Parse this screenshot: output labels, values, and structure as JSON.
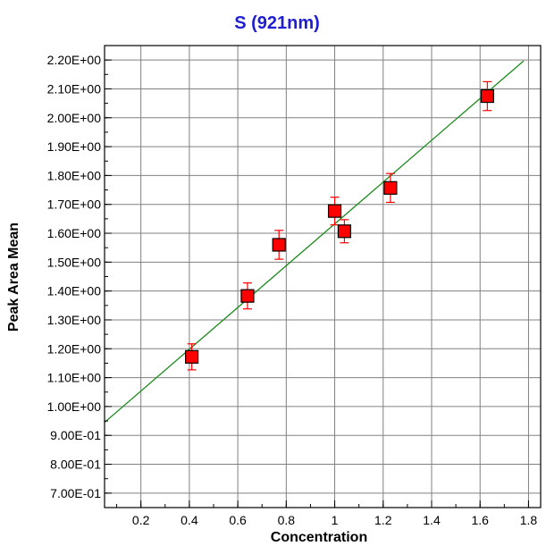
{
  "chart_data": {
    "type": "scatter",
    "title": "S (921nm)",
    "xlabel": "Concentration",
    "ylabel": "Peak Area Mean",
    "xlim": [
      0.05,
      1.85
    ],
    "ylim": [
      0.65,
      2.25
    ],
    "x_ticks": [
      0.2,
      0.4,
      0.6,
      0.8,
      1,
      1.2,
      1.4,
      1.6,
      1.8
    ],
    "x_tick_labels": [
      "0.2",
      "0.4",
      "0.6",
      "0.8",
      "1",
      "1.2",
      "1.4",
      "1.6",
      "1.8"
    ],
    "y_ticks": [
      0.7,
      0.8,
      0.9,
      1.0,
      1.1,
      1.2,
      1.3,
      1.4,
      1.5,
      1.6,
      1.7,
      1.8,
      1.9,
      2.0,
      2.1,
      2.2
    ],
    "y_tick_labels": [
      "7.00E-01",
      "8.00E-01",
      "9.00E-01",
      "1.00E+00",
      "1.10E+00",
      "1.20E+00",
      "1.30E+00",
      "1.40E+00",
      "1.50E+00",
      "1.60E+00",
      "1.70E+00",
      "1.80E+00",
      "1.90E+00",
      "2.00E+00",
      "2.10E+00",
      "2.20E+00"
    ],
    "grid": true,
    "points": [
      {
        "x": 0.41,
        "y": 1.172,
        "err": 0.045
      },
      {
        "x": 0.64,
        "y": 1.383,
        "err": 0.045
      },
      {
        "x": 0.77,
        "y": 1.56,
        "err": 0.05
      },
      {
        "x": 1.0,
        "y": 1.677,
        "err": 0.048
      },
      {
        "x": 1.04,
        "y": 1.607,
        "err": 0.04
      },
      {
        "x": 1.23,
        "y": 1.757,
        "err": 0.05
      },
      {
        "x": 1.63,
        "y": 2.075,
        "err": 0.05
      }
    ],
    "fit_line": {
      "x": [
        0.05,
        1.78
      ],
      "y": [
        0.945,
        2.197
      ]
    },
    "colors": {
      "title": "#1f1fd0",
      "marker": "#ff0000",
      "marker_edge": "#000000",
      "error_bar": "#ff0000",
      "fit_line": "#1a8a1a",
      "grid": "#808080",
      "axis": "#000000"
    }
  }
}
